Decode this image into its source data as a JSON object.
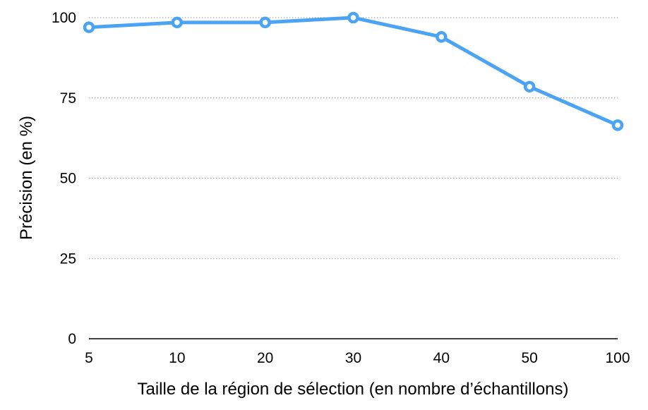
{
  "chart_data": {
    "type": "line",
    "title": "",
    "xlabel": "Taille de la région de sélection (en nombre d’échantillons)",
    "ylabel": "Précision (en %)",
    "categories": [
      "5",
      "10",
      "20",
      "30",
      "40",
      "50",
      "100"
    ],
    "series": [
      {
        "values": [
          97,
          98.5,
          98.5,
          100,
          94,
          78.5,
          66.5
        ],
        "color": "#4aa3f3"
      }
    ],
    "ylim": [
      0,
      100
    ],
    "yticks": [
      0,
      25,
      50,
      75,
      100
    ],
    "grid": true,
    "legend": "none"
  }
}
